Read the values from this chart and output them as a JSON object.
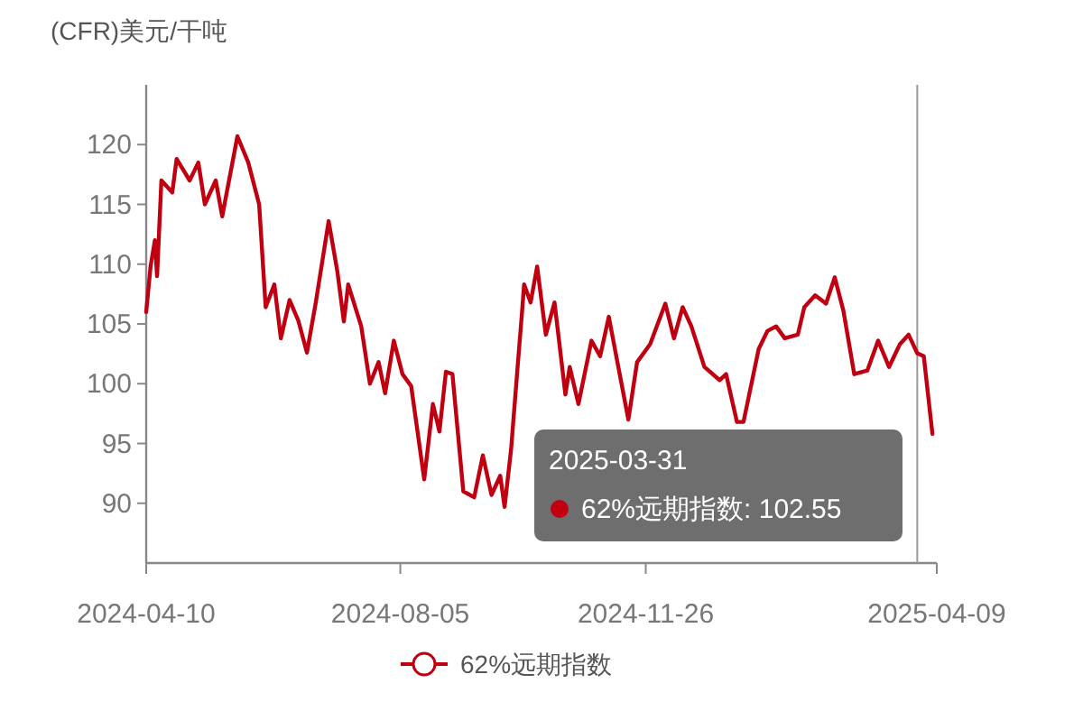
{
  "chart_data": {
    "type": "line",
    "ylabel": "(CFR)美元/干吨",
    "xlim": [
      "2024-04-10",
      "2025-04-09"
    ],
    "xticks": [
      "2024-04-10",
      "2024-08-05",
      "2024-11-26",
      "2025-04-09"
    ],
    "ylim": [
      85,
      125
    ],
    "yticks": [
      90,
      95,
      100,
      105,
      110,
      115,
      120
    ],
    "grid": false,
    "legend": "bottom",
    "ref_lines": [
      {
        "axis": "x",
        "value": "2025-03-31",
        "color": "#999999"
      }
    ],
    "annotations": [
      "2025-03-31\n62%远期指数: 102.55"
    ],
    "series": [
      {
        "name": "62%远期指数",
        "color": "#c00010",
        "x": [
          "2024-04-10",
          "2024-04-12",
          "2024-04-14",
          "2024-04-15",
          "2024-04-17",
          "2024-04-22",
          "2024-04-24",
          "2024-04-30",
          "2024-05-04",
          "2024-05-07",
          "2024-05-12",
          "2024-05-15",
          "2024-05-22",
          "2024-05-27",
          "2024-06-01",
          "2024-06-04",
          "2024-06-08",
          "2024-06-11",
          "2024-06-15",
          "2024-06-19",
          "2024-06-23",
          "2024-06-27",
          "2024-07-03",
          "2024-07-07",
          "2024-07-10",
          "2024-07-12",
          "2024-07-18",
          "2024-07-22",
          "2024-07-26",
          "2024-07-29",
          "2024-08-02",
          "2024-08-06",
          "2024-08-10",
          "2024-08-16",
          "2024-08-20",
          "2024-08-23",
          "2024-08-26",
          "2024-08-29",
          "2024-09-03",
          "2024-09-08",
          "2024-09-12",
          "2024-09-16",
          "2024-09-20",
          "2024-09-22",
          "2024-09-25",
          "2024-09-28",
          "2024-09-30",
          "2024-10-01",
          "2024-10-04",
          "2024-10-07",
          "2024-10-11",
          "2024-10-15",
          "2024-10-20",
          "2024-10-22",
          "2024-10-26",
          "2024-11-01",
          "2024-11-05",
          "2024-11-09",
          "2024-11-14",
          "2024-11-18",
          "2024-11-22",
          "2024-11-28",
          "2024-12-05",
          "2024-12-09",
          "2024-12-13",
          "2024-12-17",
          "2024-12-23",
          "2024-12-30",
          "2025-01-02",
          "2025-01-07",
          "2025-01-10",
          "2025-01-17",
          "2025-01-21",
          "2025-01-25",
          "2025-01-29",
          "2025-02-04",
          "2025-02-07",
          "2025-02-12",
          "2025-02-17",
          "2025-02-21",
          "2025-02-25",
          "2025-03-02",
          "2025-03-08",
          "2025-03-13",
          "2025-03-18",
          "2025-03-23",
          "2025-03-27",
          "2025-03-31",
          "2025-04-03",
          "2025-04-07"
        ],
        "values": [
          106,
          109.8,
          112,
          109,
          117,
          116,
          118.8,
          117,
          118.5,
          115,
          117,
          114,
          120.7,
          118.5,
          115,
          106.4,
          108.3,
          103.8,
          107,
          105.3,
          102.6,
          106.7,
          113.6,
          109.4,
          105.2,
          108.3,
          104.8,
          100,
          101.8,
          99.2,
          103.6,
          100.8,
          99.8,
          92,
          98.3,
          96,
          101,
          100.8,
          91,
          90.5,
          94,
          90.7,
          92.3,
          89.7,
          94.5,
          101.4,
          105.9,
          108.3,
          106.8,
          109.8,
          104.1,
          106.8,
          99.1,
          101.4,
          98.3,
          103.6,
          102.3,
          105.6,
          100.8,
          97,
          101.8,
          103.3,
          106.7,
          103.8,
          106.4,
          104.8,
          101.4,
          100.3,
          100.8,
          96.8,
          96.8,
          102.9,
          104.4,
          104.8,
          103.8,
          104.1,
          106.4,
          107.4,
          106.7,
          108.9,
          106.1,
          100.8,
          101.1,
          103.6,
          101.4,
          103.3,
          104.1,
          102.55,
          102.3,
          95.8
        ]
      }
    ]
  }
}
